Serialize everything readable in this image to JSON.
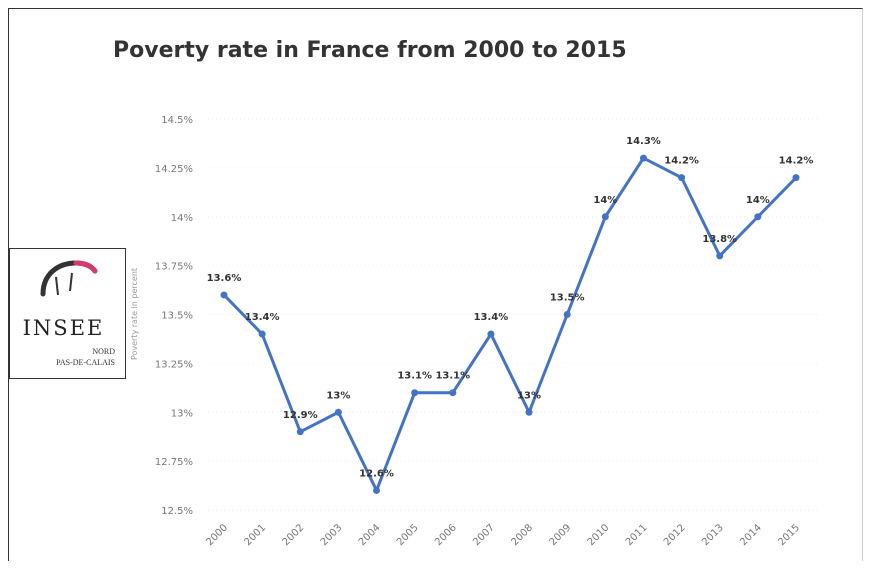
{
  "chart_data": {
    "type": "line",
    "title": "Poverty rate in France from 2000 to 2015",
    "xlabel": "",
    "ylabel": "Poverty rate in percent",
    "ylim": [
      12.5,
      14.5
    ],
    "yticks": [
      "12.5%",
      "12.75%",
      "13%",
      "13.25%",
      "13.5%",
      "13.75%",
      "14%",
      "14.25%",
      "14.5%"
    ],
    "categories": [
      "2000",
      "2001",
      "2002",
      "2003",
      "2004",
      "2005",
      "2006",
      "2007",
      "2008",
      "2009",
      "2010",
      "2011",
      "2012",
      "2013",
      "2014",
      "2015"
    ],
    "values": [
      13.6,
      13.4,
      12.9,
      13.0,
      12.6,
      13.1,
      13.1,
      13.4,
      13.0,
      13.5,
      14.0,
      14.3,
      14.2,
      13.8,
      14.0,
      14.2
    ],
    "data_labels": [
      "13.6%",
      "13.4%",
      "12.9%",
      "13%",
      "12.6%",
      "13.1%",
      "13.1%",
      "13.4%",
      "13%",
      "13.5%",
      "14%",
      "14.3%",
      "14.2%",
      "13.8%",
      "14%",
      "14.2%"
    ],
    "line_color": "#4472c4",
    "grid": true,
    "legend": "none"
  },
  "logo": {
    "word": "INSEE",
    "line1": "NORD",
    "line2": "PAS-DE-CALAIS",
    "accent": "#d63a6a"
  }
}
